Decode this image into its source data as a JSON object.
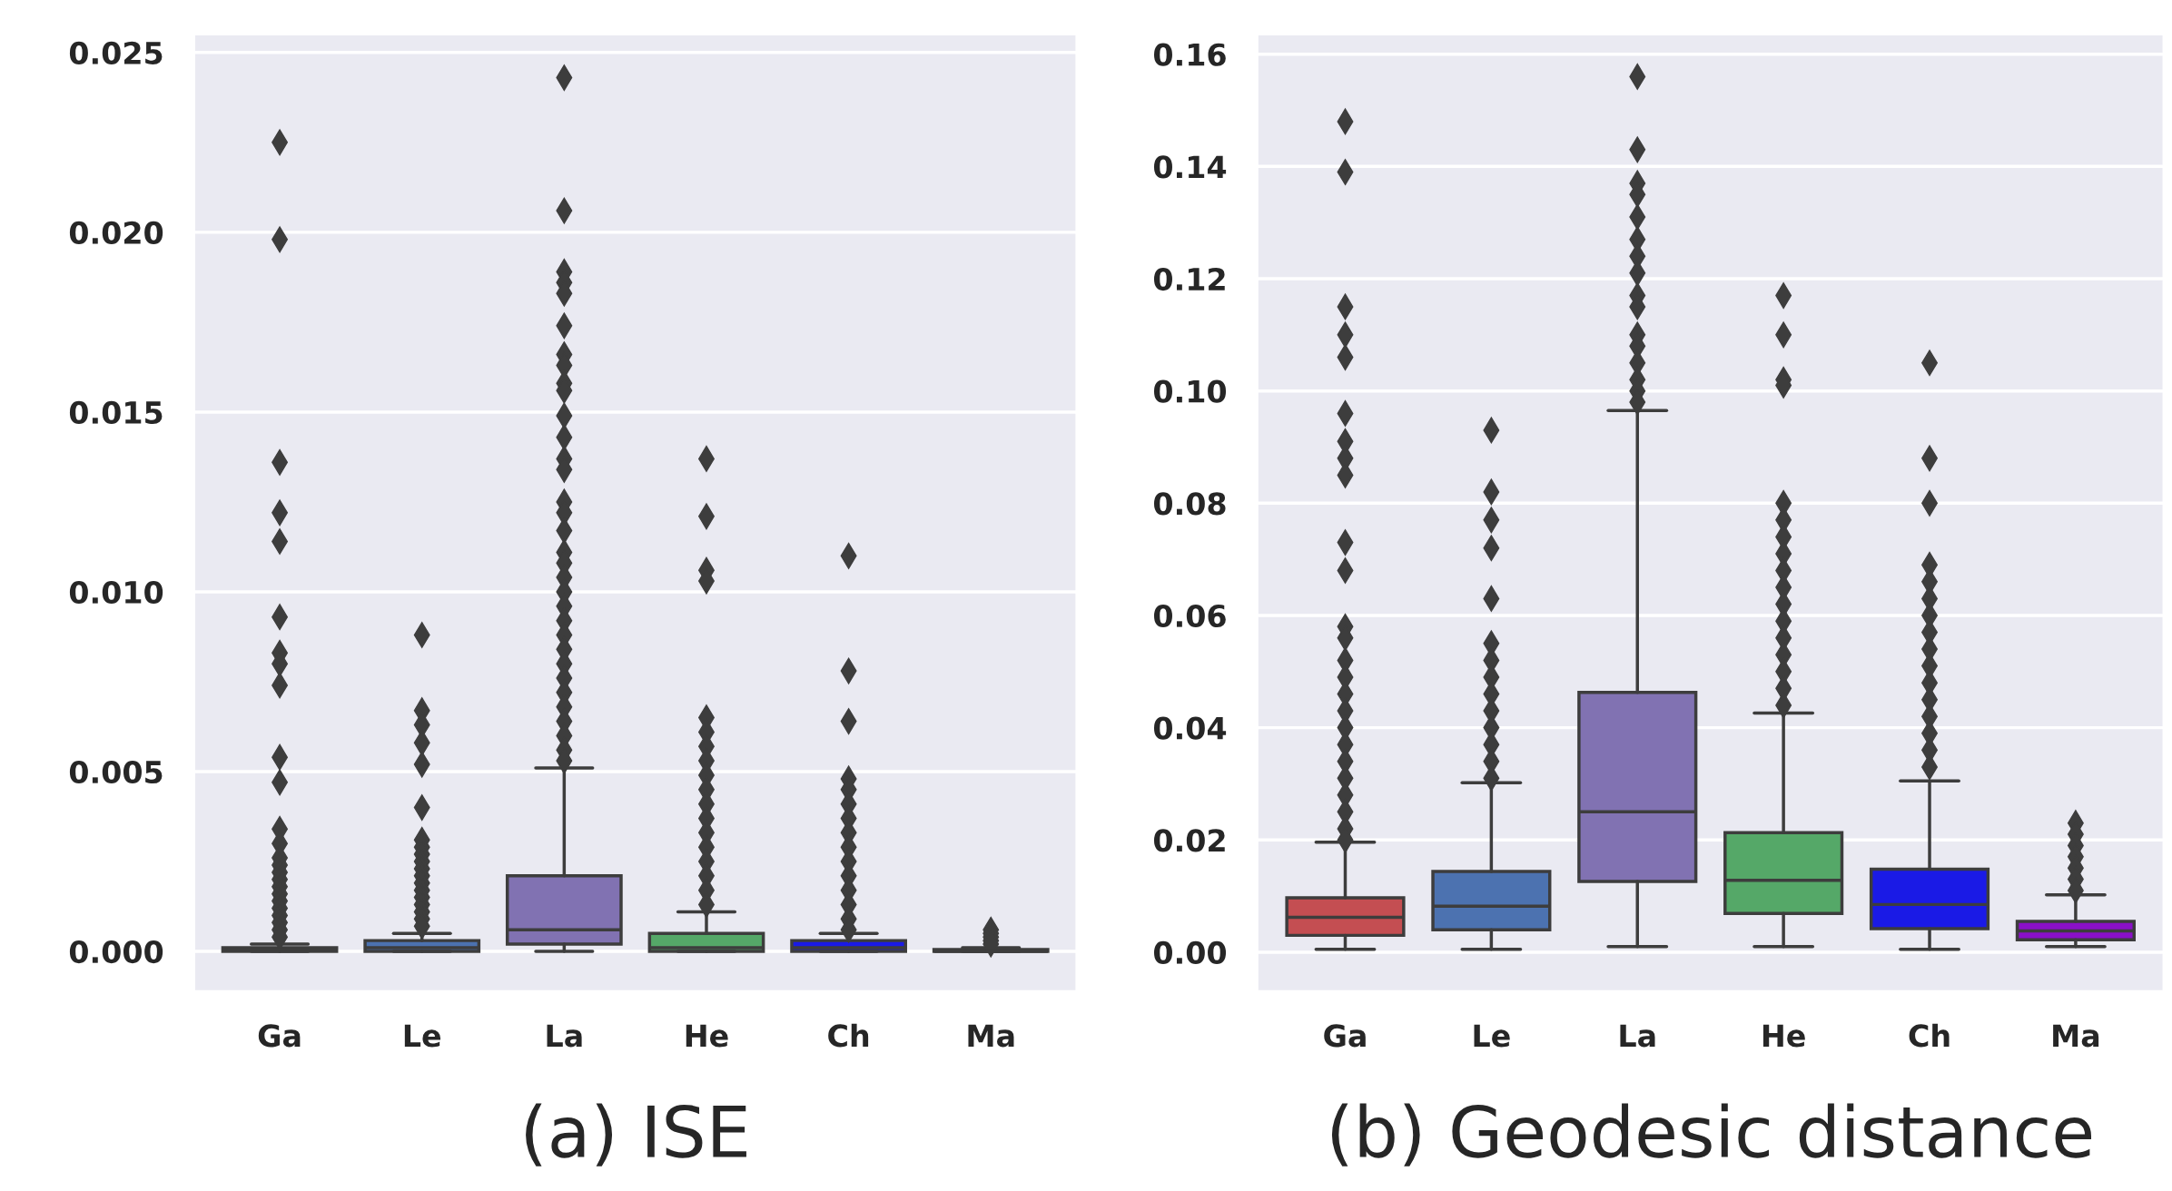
{
  "chart_data": [
    {
      "type": "box",
      "xlabel": "(a) ISE",
      "categories": [
        "Ga",
        "Le",
        "La",
        "He",
        "Ch",
        "Ma"
      ],
      "ylim": [
        -0.0011,
        0.0255
      ],
      "yticks": [
        {
          "value": 0,
          "label": "0.000"
        },
        {
          "value": 0.005,
          "label": "0.005"
        },
        {
          "value": 0.01,
          "label": "0.010"
        },
        {
          "value": 0.015,
          "label": "0.015"
        },
        {
          "value": 0.02,
          "label": "0.020"
        },
        {
          "value": 0.025,
          "label": "0.025"
        }
      ],
      "grid": "y",
      "marker": "diamond",
      "series": [
        {
          "colors": [
            "#c44e52",
            "#4c72b0",
            "#8172b2",
            "#55a868",
            "#1a1ae6",
            "#8a10c8"
          ],
          "boxes": [
            {
              "low": 0,
              "q1": 0,
              "median": 5e-05,
              "q3": 0.0001,
              "high": 0.0002,
              "outliers": [
                0.0225,
                0.0198,
                0.0136,
                0.0122,
                0.0114,
                0.0093,
                0.0083,
                0.008,
                0.0074,
                0.0054,
                0.0047,
                0.0034,
                0.003,
                0.0026,
                0.0024,
                0.0022,
                0.002,
                0.0018,
                0.0016,
                0.0014,
                0.0012,
                0.001,
                0.0008,
                0.0006,
                0.0004
              ]
            },
            {
              "low": 0,
              "q1": 0,
              "median": 0.0001,
              "q3": 0.0003,
              "high": 0.0005,
              "outliers": [
                0.0088,
                0.0067,
                0.0063,
                0.0058,
                0.0052,
                0.004,
                0.0031,
                0.0029,
                0.0027,
                0.0025,
                0.0023,
                0.0021,
                0.0019,
                0.0017,
                0.0015,
                0.0013,
                0.0011,
                0.0009,
                0.0007
              ]
            },
            {
              "low": 0,
              "q1": 0.0002,
              "median": 0.0006,
              "q3": 0.0021,
              "high": 0.0051,
              "outliers": [
                0.0243,
                0.0206,
                0.0189,
                0.0186,
                0.0183,
                0.0174,
                0.0166,
                0.0163,
                0.0158,
                0.0156,
                0.0149,
                0.0143,
                0.0137,
                0.0134,
                0.0125,
                0.0122,
                0.0117,
                0.0111,
                0.0108,
                0.0104,
                0.01,
                0.0096,
                0.0092,
                0.0088,
                0.0084,
                0.008,
                0.0076,
                0.0072,
                0.0068,
                0.0064,
                0.006,
                0.0056,
                0.0053
              ]
            },
            {
              "low": 0,
              "q1": 0,
              "median": 0.0001,
              "q3": 0.0005,
              "high": 0.0011,
              "outliers": [
                0.0137,
                0.0121,
                0.0106,
                0.0103,
                0.0065,
                0.0061,
                0.0057,
                0.0053,
                0.0049,
                0.0045,
                0.0041,
                0.0037,
                0.0033,
                0.0029,
                0.0025,
                0.0021,
                0.0017,
                0.0013
              ]
            },
            {
              "low": 0,
              "q1": 0,
              "median": 0.0001,
              "q3": 0.0003,
              "high": 0.0005,
              "outliers": [
                0.011,
                0.0078,
                0.0064,
                0.0048,
                0.0045,
                0.0041,
                0.0037,
                0.0033,
                0.0029,
                0.0025,
                0.0021,
                0.0017,
                0.0013,
                0.0009,
                0.0006
              ]
            },
            {
              "low": 0,
              "q1": 0,
              "median": 0,
              "q3": 5e-05,
              "high": 0.0001,
              "outliers": [
                0.0006,
                0.0005,
                0.0004,
                0.0003,
                0.0002
              ]
            }
          ]
        }
      ]
    },
    {
      "type": "box",
      "xlabel": "(b) Geodesic distance",
      "categories": [
        "Ga",
        "Le",
        "La",
        "He",
        "Ch",
        "Ma"
      ],
      "ylim": [
        -0.0069,
        0.1635
      ],
      "yticks": [
        {
          "value": 0,
          "label": "0.00"
        },
        {
          "value": 0.02,
          "label": "0.02"
        },
        {
          "value": 0.04,
          "label": "0.04"
        },
        {
          "value": 0.06,
          "label": "0.06"
        },
        {
          "value": 0.08,
          "label": "0.08"
        },
        {
          "value": 0.1,
          "label": "0.10"
        },
        {
          "value": 0.12,
          "label": "0.12"
        },
        {
          "value": 0.14,
          "label": "0.14"
        },
        {
          "value": 0.16,
          "label": "0.16"
        }
      ],
      "grid": "y",
      "marker": "diamond",
      "series": [
        {
          "colors": [
            "#c44e52",
            "#4c72b0",
            "#8172b2",
            "#55a868",
            "#1a1ae6",
            "#8a10c8"
          ],
          "boxes": [
            {
              "low": 0.0005,
              "q1": 0.003,
              "median": 0.0062,
              "q3": 0.0097,
              "high": 0.0196,
              "outliers": [
                0.148,
                0.139,
                0.115,
                0.11,
                0.106,
                0.096,
                0.091,
                0.088,
                0.085,
                0.073,
                0.068,
                0.058,
                0.056,
                0.052,
                0.049,
                0.046,
                0.043,
                0.04,
                0.037,
                0.034,
                0.031,
                0.028,
                0.025,
                0.022,
                0.02
              ]
            },
            {
              "low": 0.0005,
              "q1": 0.004,
              "median": 0.0082,
              "q3": 0.0144,
              "high": 0.0302,
              "outliers": [
                0.093,
                0.082,
                0.077,
                0.072,
                0.063,
                0.055,
                0.052,
                0.049,
                0.046,
                0.043,
                0.04,
                0.037,
                0.034,
                0.031
              ]
            },
            {
              "low": 0.001,
              "q1": 0.0126,
              "median": 0.025,
              "q3": 0.0463,
              "high": 0.0965,
              "outliers": [
                0.156,
                0.143,
                0.137,
                0.135,
                0.131,
                0.127,
                0.124,
                0.121,
                0.117,
                0.115,
                0.11,
                0.108,
                0.105,
                0.102,
                0.1,
                0.098
              ]
            },
            {
              "low": 0.001,
              "q1": 0.0069,
              "median": 0.0128,
              "q3": 0.0213,
              "high": 0.0426,
              "outliers": [
                0.117,
                0.11,
                0.102,
                0.101,
                0.08,
                0.077,
                0.074,
                0.071,
                0.068,
                0.065,
                0.062,
                0.059,
                0.056,
                0.053,
                0.05,
                0.047,
                0.044
              ]
            },
            {
              "low": 0.0005,
              "q1": 0.0042,
              "median": 0.0085,
              "q3": 0.0148,
              "high": 0.0305,
              "outliers": [
                0.105,
                0.088,
                0.08,
                0.069,
                0.066,
                0.063,
                0.06,
                0.057,
                0.054,
                0.051,
                0.048,
                0.045,
                0.042,
                0.039,
                0.036,
                0.033
              ]
            },
            {
              "low": 0.001,
              "q1": 0.0022,
              "median": 0.0038,
              "q3": 0.0055,
              "high": 0.0102,
              "outliers": [
                0.023,
                0.021,
                0.019,
                0.017,
                0.015,
                0.013,
                0.011
              ]
            }
          ]
        }
      ]
    }
  ]
}
